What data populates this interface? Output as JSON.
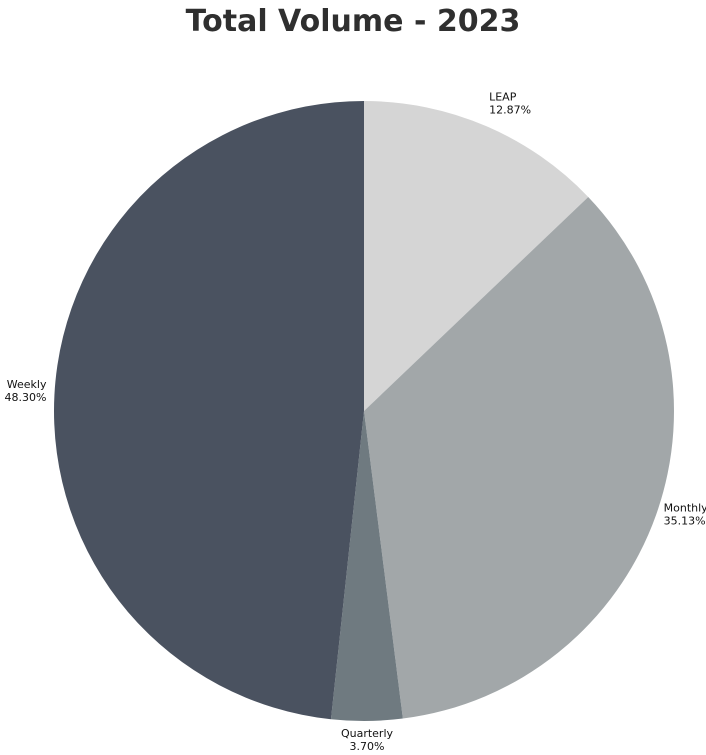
{
  "chart_data": {
    "type": "pie",
    "title": "Total Volume - 2023",
    "slices": [
      {
        "label": "LEAP",
        "value": 12.87,
        "percent_label": "12.87%",
        "color": "#d5d5d5"
      },
      {
        "label": "Monthly",
        "value": 35.13,
        "percent_label": "35.13%",
        "color": "#a2a7a9"
      },
      {
        "label": "Quarterly",
        "value": 3.7,
        "percent_label": "3.70%",
        "color": "#6f7a80"
      },
      {
        "label": "Weekly",
        "value": 48.3,
        "percent_label": "48.30%",
        "color": "#4a5260"
      }
    ],
    "start_angle": "top",
    "direction": "clockwise",
    "legend": "none"
  }
}
